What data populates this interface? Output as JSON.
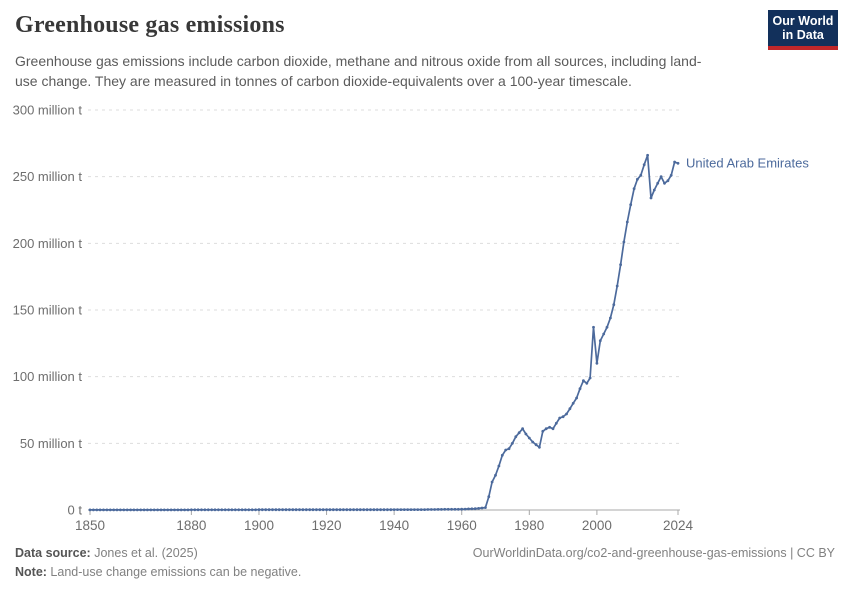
{
  "header": {
    "title": "Greenhouse gas emissions",
    "subtitle": "Greenhouse gas emissions include carbon dioxide, methane and nitrous oxide from all sources, including land-use change. They are measured in tonnes of carbon dioxide-equivalents over a 100-year timescale."
  },
  "logo": {
    "line1": "Our World",
    "line2": "in Data"
  },
  "colors": {
    "title": "#383838",
    "subtitle": "#5b5b5b",
    "footer": "#818181",
    "footer_bold": "#555555",
    "logo_bg": "#12305b",
    "logo_bar": "#c0272a",
    "line": "#4C6A9C",
    "grid": "#dddddd",
    "axis": "#a8a8a8",
    "tick_text": "#6e6e6e"
  },
  "footer": {
    "source_label": "Data source:",
    "source_value": " Jones et al. (2025)",
    "url_text": "OurWorldinData.org/co2-and-greenhouse-gas-emissions | CC BY",
    "note_label": "Note:",
    "note_value": " Land-use change emissions can be negative."
  },
  "chart_data": {
    "type": "line",
    "title": "Greenhouse gas emissions",
    "xlabel": "",
    "ylabel": "",
    "xlim": [
      1850,
      2024
    ],
    "ylim": [
      0,
      300
    ],
    "grid": "dashed-horizontal",
    "legend_position": "end-of-line-label",
    "x_ticks": [
      1850,
      1880,
      1900,
      1920,
      1940,
      1960,
      1980,
      2000,
      2024
    ],
    "y_ticks": [
      {
        "value": 0,
        "label": "0 t"
      },
      {
        "value": 50,
        "label": "50 million t"
      },
      {
        "value": 100,
        "label": "100 million t"
      },
      {
        "value": 150,
        "label": "150 million t"
      },
      {
        "value": 200,
        "label": "200 million t"
      },
      {
        "value": 250,
        "label": "250 million t"
      },
      {
        "value": 300,
        "label": "300 million t"
      }
    ],
    "series": [
      {
        "name": "United Arab Emirates",
        "color": "#4C6A9C",
        "points": [
          [
            1850,
            0.1
          ],
          [
            1851,
            0.1
          ],
          [
            1852,
            0.1
          ],
          [
            1853,
            0.1
          ],
          [
            1854,
            0.1
          ],
          [
            1855,
            0.1
          ],
          [
            1856,
            0.1
          ],
          [
            1857,
            0.1
          ],
          [
            1858,
            0.1
          ],
          [
            1859,
            0.1
          ],
          [
            1860,
            0.1
          ],
          [
            1861,
            0.1
          ],
          [
            1862,
            0.1
          ],
          [
            1863,
            0.1
          ],
          [
            1864,
            0.1
          ],
          [
            1865,
            0.1
          ],
          [
            1866,
            0.1
          ],
          [
            1867,
            0.1
          ],
          [
            1868,
            0.1
          ],
          [
            1869,
            0.1
          ],
          [
            1870,
            0.1
          ],
          [
            1871,
            0.1
          ],
          [
            1872,
            0.1
          ],
          [
            1873,
            0.1
          ],
          [
            1874,
            0.1
          ],
          [
            1875,
            0.1
          ],
          [
            1876,
            0.1
          ],
          [
            1877,
            0.1
          ],
          [
            1878,
            0.1
          ],
          [
            1879,
            0.1
          ],
          [
            1880,
            0.15
          ],
          [
            1881,
            0.15
          ],
          [
            1882,
            0.15
          ],
          [
            1883,
            0.15
          ],
          [
            1884,
            0.15
          ],
          [
            1885,
            0.15
          ],
          [
            1886,
            0.15
          ],
          [
            1887,
            0.15
          ],
          [
            1888,
            0.15
          ],
          [
            1889,
            0.15
          ],
          [
            1890,
            0.15
          ],
          [
            1891,
            0.15
          ],
          [
            1892,
            0.15
          ],
          [
            1893,
            0.15
          ],
          [
            1894,
            0.15
          ],
          [
            1895,
            0.15
          ],
          [
            1896,
            0.15
          ],
          [
            1897,
            0.15
          ],
          [
            1898,
            0.15
          ],
          [
            1899,
            0.15
          ],
          [
            1900,
            0.2
          ],
          [
            1901,
            0.2
          ],
          [
            1902,
            0.2
          ],
          [
            1903,
            0.2
          ],
          [
            1904,
            0.2
          ],
          [
            1905,
            0.2
          ],
          [
            1906,
            0.2
          ],
          [
            1907,
            0.2
          ],
          [
            1908,
            0.2
          ],
          [
            1909,
            0.2
          ],
          [
            1910,
            0.2
          ],
          [
            1911,
            0.2
          ],
          [
            1912,
            0.2
          ],
          [
            1913,
            0.2
          ],
          [
            1914,
            0.2
          ],
          [
            1915,
            0.2
          ],
          [
            1916,
            0.2
          ],
          [
            1917,
            0.2
          ],
          [
            1918,
            0.2
          ],
          [
            1919,
            0.2
          ],
          [
            1920,
            0.25
          ],
          [
            1921,
            0.25
          ],
          [
            1922,
            0.25
          ],
          [
            1923,
            0.25
          ],
          [
            1924,
            0.25
          ],
          [
            1925,
            0.25
          ],
          [
            1926,
            0.25
          ],
          [
            1927,
            0.25
          ],
          [
            1928,
            0.25
          ],
          [
            1929,
            0.25
          ],
          [
            1930,
            0.25
          ],
          [
            1931,
            0.25
          ],
          [
            1932,
            0.25
          ],
          [
            1933,
            0.25
          ],
          [
            1934,
            0.25
          ],
          [
            1935,
            0.25
          ],
          [
            1936,
            0.25
          ],
          [
            1937,
            0.25
          ],
          [
            1938,
            0.25
          ],
          [
            1939,
            0.25
          ],
          [
            1940,
            0.3
          ],
          [
            1941,
            0.3
          ],
          [
            1942,
            0.3
          ],
          [
            1943,
            0.3
          ],
          [
            1944,
            0.3
          ],
          [
            1945,
            0.3
          ],
          [
            1946,
            0.3
          ],
          [
            1947,
            0.3
          ],
          [
            1948,
            0.3
          ],
          [
            1949,
            0.3
          ],
          [
            1950,
            0.4
          ],
          [
            1951,
            0.4
          ],
          [
            1952,
            0.4
          ],
          [
            1953,
            0.45
          ],
          [
            1954,
            0.45
          ],
          [
            1955,
            0.5
          ],
          [
            1956,
            0.5
          ],
          [
            1957,
            0.5
          ],
          [
            1958,
            0.55
          ],
          [
            1959,
            0.55
          ],
          [
            1960,
            0.6
          ],
          [
            1961,
            0.7
          ],
          [
            1962,
            0.8
          ],
          [
            1963,
            0.9
          ],
          [
            1964,
            1.0
          ],
          [
            1965,
            1.2
          ],
          [
            1966,
            1.5
          ],
          [
            1967,
            1.8
          ],
          [
            1968,
            10
          ],
          [
            1969,
            21
          ],
          [
            1970,
            26
          ],
          [
            1971,
            33
          ],
          [
            1972,
            41
          ],
          [
            1973,
            45
          ],
          [
            1974,
            46
          ],
          [
            1975,
            50
          ],
          [
            1976,
            55
          ],
          [
            1977,
            58
          ],
          [
            1978,
            61
          ],
          [
            1979,
            57
          ],
          [
            1980,
            54
          ],
          [
            1981,
            51
          ],
          [
            1982,
            49
          ],
          [
            1983,
            47
          ],
          [
            1984,
            59
          ],
          [
            1985,
            61
          ],
          [
            1986,
            62
          ],
          [
            1987,
            61
          ],
          [
            1988,
            65
          ],
          [
            1989,
            69
          ],
          [
            1990,
            70
          ],
          [
            1991,
            72
          ],
          [
            1992,
            76
          ],
          [
            1993,
            80
          ],
          [
            1994,
            84
          ],
          [
            1995,
            91
          ],
          [
            1996,
            97
          ],
          [
            1997,
            95
          ],
          [
            1998,
            99
          ],
          [
            1999,
            137
          ],
          [
            2000,
            110
          ],
          [
            2001,
            127
          ],
          [
            2002,
            132
          ],
          [
            2003,
            137
          ],
          [
            2004,
            144
          ],
          [
            2005,
            154
          ],
          [
            2006,
            168
          ],
          [
            2007,
            184
          ],
          [
            2008,
            201
          ],
          [
            2009,
            216
          ],
          [
            2010,
            229
          ],
          [
            2011,
            241
          ],
          [
            2012,
            248
          ],
          [
            2013,
            251
          ],
          [
            2014,
            259
          ],
          [
            2015,
            266
          ],
          [
            2016,
            234
          ],
          [
            2017,
            240
          ],
          [
            2018,
            245
          ],
          [
            2019,
            250
          ],
          [
            2020,
            245
          ],
          [
            2021,
            247
          ],
          [
            2022,
            251
          ],
          [
            2023,
            261
          ],
          [
            2024,
            260
          ]
        ]
      }
    ]
  }
}
